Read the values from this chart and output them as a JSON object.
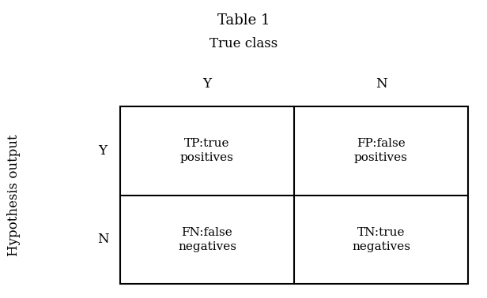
{
  "title": "Table 1",
  "col_header": "True class",
  "row_header": "Hypothesis output",
  "col_labels": [
    "Y",
    "N"
  ],
  "row_labels": [
    "Y",
    "N"
  ],
  "cell_texts": [
    [
      "TP:true\npositives",
      "FP:false\npositives"
    ],
    [
      "FN:false\nnegatives",
      "TN:true\nnegatives"
    ]
  ],
  "background_color": "#ffffff",
  "cell_color": "#ffffff",
  "border_color": "#000000",
  "text_color": "#000000",
  "title_fontsize": 13,
  "header_fontsize": 12,
  "label_fontsize": 12,
  "cell_fontsize": 11,
  "fig_width": 6.16,
  "fig_height": 3.78
}
